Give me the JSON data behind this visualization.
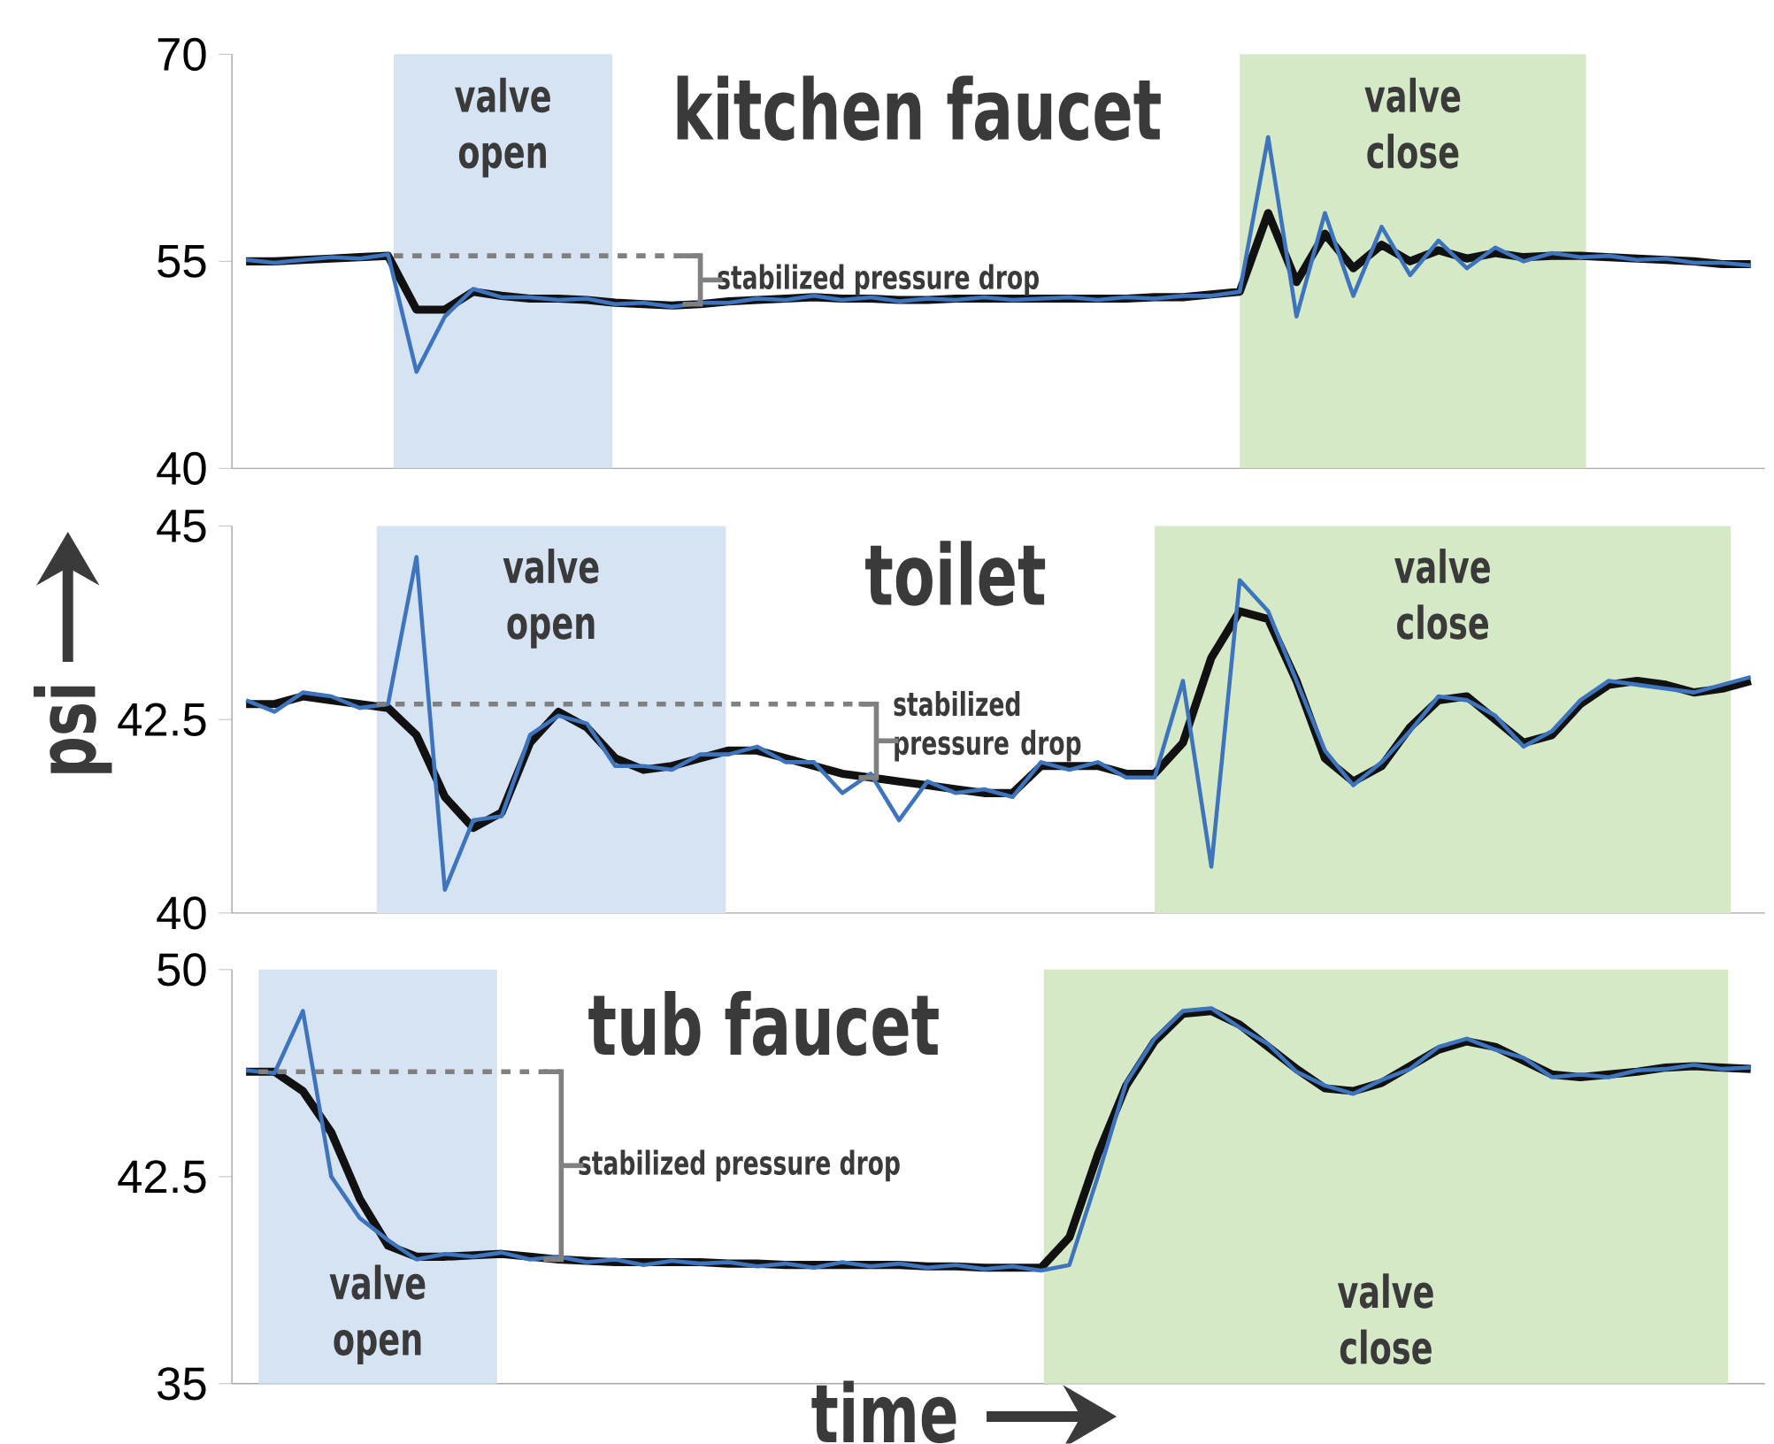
{
  "chart_data": [
    {
      "type": "line",
      "title": "kitchen faucet",
      "categories": [
        null,
        null,
        null,
        null,
        null,
        null,
        null,
        null,
        null,
        null,
        null,
        null,
        null,
        null,
        null,
        null,
        null,
        null,
        null,
        null,
        null,
        null,
        null,
        null,
        null,
        null,
        null,
        null,
        null,
        null,
        null,
        null,
        null,
        null,
        null,
        null,
        null,
        null,
        null,
        null,
        null,
        null,
        null,
        null,
        null,
        null,
        null,
        null,
        null,
        null,
        null,
        null,
        null,
        null
      ],
      "series": [
        {
          "color": "#3d74bd",
          "values": [
            55.1,
            54.9,
            55.1,
            55.3,
            55.2,
            55.5,
            47.0,
            51.0,
            53.0,
            52.4,
            52.4,
            52.2,
            52.3,
            51.9,
            52.0,
            51.7,
            52.0,
            52.0,
            52.3,
            52.2,
            52.5,
            52.2,
            52.4,
            52.1,
            52.3,
            52.2,
            52.4,
            52.2,
            52.3,
            52.4,
            52.2,
            52.4,
            52.3,
            52.5,
            52.5,
            52.8,
            64.0,
            51.0,
            58.5,
            52.5,
            57.5,
            54.0,
            56.5,
            54.5,
            56.0,
            55.0,
            55.6,
            55.3,
            55.4,
            55.1,
            55.2,
            54.9,
            54.9,
            54.7
          ]
        },
        {
          "color": "#111111",
          "values": [
            55.0,
            55.0,
            55.1,
            55.2,
            55.3,
            55.4,
            51.5,
            51.5,
            52.8,
            52.5,
            52.3,
            52.3,
            52.2,
            52.0,
            51.9,
            51.8,
            51.9,
            52.1,
            52.2,
            52.3,
            52.4,
            52.3,
            52.3,
            52.2,
            52.2,
            52.3,
            52.3,
            52.3,
            52.3,
            52.3,
            52.3,
            52.3,
            52.4,
            52.4,
            52.6,
            52.8,
            58.5,
            53.5,
            57.0,
            54.5,
            56.2,
            55.0,
            55.8,
            55.2,
            55.6,
            55.3,
            55.4,
            55.4,
            55.3,
            55.2,
            55.1,
            55.0,
            54.8,
            54.8
          ]
        }
      ],
      "ylim": [
        40,
        70
      ],
      "yticks": [
        40,
        55,
        70
      ],
      "ref_lines": [
        {
          "axis": "y",
          "value": 55.4,
          "color": "#808080",
          "line_style": "dashed"
        }
      ],
      "tick_labels": "y",
      "annotations": [
        "valve open",
        "valve close",
        "stabilized pressure drop"
      ]
    },
    {
      "type": "line",
      "title": "toilet",
      "ylabel": "psi",
      "categories": [
        null,
        null,
        null,
        null,
        null,
        null,
        null,
        null,
        null,
        null,
        null,
        null,
        null,
        null,
        null,
        null,
        null,
        null,
        null,
        null,
        null,
        null,
        null,
        null,
        null,
        null,
        null,
        null,
        null,
        null,
        null,
        null,
        null,
        null,
        null,
        null,
        null,
        null,
        null,
        null,
        null,
        null,
        null,
        null,
        null,
        null,
        null,
        null,
        null,
        null,
        null,
        null,
        null,
        null
      ],
      "series": [
        {
          "color": "#3d74bd",
          "values": [
            42.75,
            42.6,
            42.85,
            42.8,
            42.65,
            42.7,
            44.6,
            40.3,
            41.2,
            41.25,
            42.3,
            42.55,
            42.45,
            41.9,
            41.9,
            41.85,
            42.05,
            42.05,
            42.15,
            41.95,
            41.95,
            41.55,
            41.8,
            41.2,
            41.7,
            41.55,
            41.6,
            41.5,
            41.95,
            41.85,
            41.95,
            41.75,
            41.75,
            43.0,
            40.6,
            44.3,
            43.9,
            43.0,
            42.1,
            41.65,
            41.95,
            42.35,
            42.8,
            42.75,
            42.55,
            42.15,
            42.35,
            42.75,
            43.0,
            42.95,
            42.9,
            42.85,
            42.95,
            43.05
          ]
        },
        {
          "color": "#111111",
          "values": [
            42.7,
            42.7,
            42.8,
            42.75,
            42.7,
            42.65,
            42.3,
            41.5,
            41.1,
            41.3,
            42.2,
            42.6,
            42.4,
            42.0,
            41.85,
            41.9,
            42.0,
            42.1,
            42.1,
            42.0,
            41.9,
            41.8,
            41.75,
            41.7,
            41.65,
            41.6,
            41.55,
            41.55,
            41.9,
            41.9,
            41.9,
            41.8,
            41.8,
            42.2,
            43.3,
            43.9,
            43.8,
            43.0,
            42.0,
            41.7,
            41.9,
            42.4,
            42.75,
            42.8,
            42.5,
            42.2,
            42.3,
            42.7,
            42.95,
            43.0,
            42.95,
            42.85,
            42.9,
            43.0
          ]
        }
      ],
      "ylim": [
        40,
        45
      ],
      "yticks": [
        40,
        42.5,
        45
      ],
      "ref_lines": [
        {
          "axis": "y",
          "value": 42.7,
          "color": "#808080",
          "line_style": "dashed"
        }
      ],
      "tick_labels": "y",
      "annotations": [
        "valve open",
        "valve close",
        "stabilized pressure drop"
      ]
    },
    {
      "type": "line",
      "title": "tub faucet",
      "xlabel": "time",
      "categories": [
        null,
        null,
        null,
        null,
        null,
        null,
        null,
        null,
        null,
        null,
        null,
        null,
        null,
        null,
        null,
        null,
        null,
        null,
        null,
        null,
        null,
        null,
        null,
        null,
        null,
        null,
        null,
        null,
        null,
        null,
        null,
        null,
        null,
        null,
        null,
        null,
        null,
        null,
        null,
        null,
        null,
        null,
        null,
        null,
        null,
        null,
        null,
        null,
        null,
        null,
        null,
        null,
        null,
        null
      ],
      "series": [
        {
          "color": "#3d74bd",
          "values": [
            46.35,
            46.25,
            48.5,
            42.5,
            41.0,
            40.2,
            39.5,
            39.7,
            39.6,
            39.75,
            39.5,
            39.6,
            39.4,
            39.5,
            39.3,
            39.45,
            39.35,
            39.4,
            39.25,
            39.35,
            39.2,
            39.4,
            39.25,
            39.35,
            39.2,
            39.3,
            39.15,
            39.25,
            39.1,
            39.3,
            42.5,
            45.9,
            47.5,
            48.5,
            48.6,
            47.9,
            47.3,
            46.3,
            45.8,
            45.5,
            46.0,
            46.4,
            47.2,
            47.5,
            47.1,
            46.8,
            46.1,
            46.2,
            46.1,
            46.35,
            46.4,
            46.55,
            46.4,
            46.45
          ]
        },
        {
          "color": "#111111",
          "values": [
            46.3,
            46.3,
            45.6,
            44.1,
            41.7,
            40.0,
            39.6,
            39.6,
            39.65,
            39.7,
            39.6,
            39.5,
            39.45,
            39.4,
            39.4,
            39.4,
            39.4,
            39.35,
            39.35,
            39.3,
            39.3,
            39.3,
            39.3,
            39.3,
            39.25,
            39.25,
            39.2,
            39.2,
            39.2,
            40.3,
            43.3,
            45.8,
            47.4,
            48.4,
            48.5,
            48.0,
            47.2,
            46.4,
            45.7,
            45.6,
            45.9,
            46.5,
            47.1,
            47.4,
            47.2,
            46.7,
            46.2,
            46.1,
            46.2,
            46.3,
            46.45,
            46.5,
            46.45,
            46.4
          ]
        }
      ],
      "ylim": [
        35,
        50
      ],
      "yticks": [
        35,
        42.5,
        50
      ],
      "ref_lines": [
        {
          "axis": "y",
          "value": 46.3,
          "color": "#808080",
          "line_style": "dashed"
        }
      ],
      "tick_labels": "y",
      "annotations": [
        "valve open",
        "valve close",
        "stabilized pressure drop"
      ]
    }
  ]
}
